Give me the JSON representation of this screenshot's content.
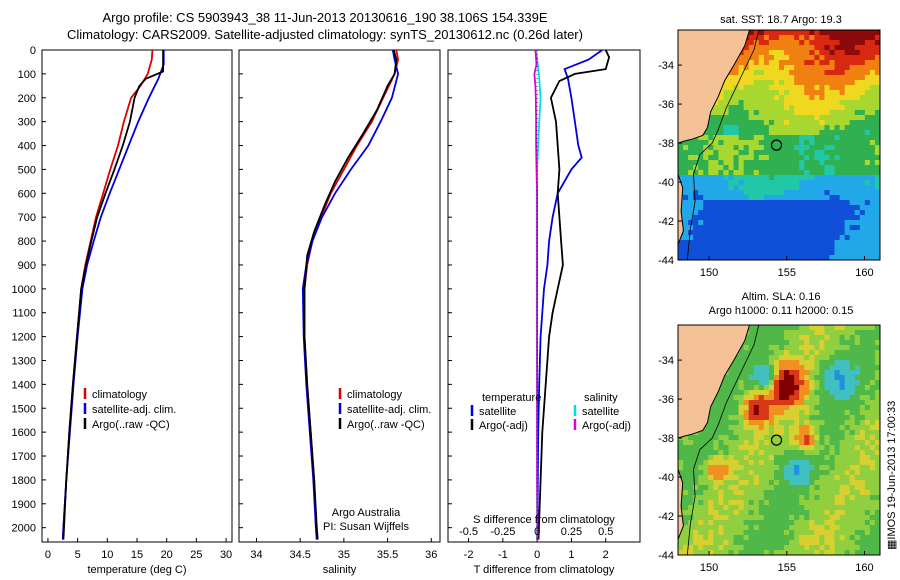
{
  "title_line1": "Argo profile: CS 5903943_38 11-Jun-2013 20130616_190 38.106S 154.339E",
  "title_line2": "Climatology: CARS2009. Satellite-adjusted climatology: synTS_20130612.nc (0.26d later)",
  "map1_title": "sat. SST: 18.7 Argo: 19.3",
  "map2_title_line1": "Altim. SLA: 0.16",
  "map2_title_line2": "Argo h1000: 0.11 h2000: 0.15",
  "side_text": "IMOS 19-Jun-2013 17:00:33",
  "attribution": [
    "Argo Australia",
    "PI: Susan Wijffels"
  ],
  "colors": {
    "climatology": "#dd0000",
    "satellite": "#0000dd",
    "argo": "#000000",
    "sat_cyan": "#00dddd",
    "argo_magenta": "#dd00dd",
    "land": "#f5c298"
  },
  "chart_data": [
    {
      "type": "line",
      "xlabel": "temperature (deg C)",
      "ylabel": "depth",
      "xlim": [
        -1,
        31
      ],
      "ylim": [
        2060,
        0
      ],
      "x_ticks": [
        0,
        5,
        10,
        15,
        20,
        25,
        30
      ],
      "y_ticks": [
        0,
        100,
        200,
        300,
        400,
        500,
        600,
        700,
        800,
        900,
        1000,
        1100,
        1200,
        1300,
        1400,
        1500,
        1600,
        1700,
        1800,
        1900,
        2000
      ],
      "legend": [
        "climatology",
        "satellite-adj. clim.",
        "Argo(..raw -QC)"
      ],
      "legend_position": "lower-center",
      "series": [
        {
          "name": "climatology",
          "color": "#dd0000",
          "points": [
            [
              17.6,
              0
            ],
            [
              17.5,
              40
            ],
            [
              16.8,
              100
            ],
            [
              15.6,
              150
            ],
            [
              14.0,
              200
            ],
            [
              12.8,
              300
            ],
            [
              11.8,
              400
            ],
            [
              10.5,
              500
            ],
            [
              9.3,
              600
            ],
            [
              8.1,
              700
            ],
            [
              7.2,
              800
            ],
            [
              6.3,
              900
            ],
            [
              5.6,
              1000
            ],
            [
              4.9,
              1200
            ],
            [
              4.2,
              1400
            ],
            [
              3.6,
              1600
            ],
            [
              3.1,
              1800
            ],
            [
              2.6,
              2000
            ],
            [
              2.5,
              2050
            ]
          ]
        },
        {
          "name": "satellite-adj. clim.",
          "color": "#0000dd",
          "points": [
            [
              19.5,
              0
            ],
            [
              19.5,
              60
            ],
            [
              18.6,
              120
            ],
            [
              17.0,
              200
            ],
            [
              15.2,
              300
            ],
            [
              13.6,
              400
            ],
            [
              12.0,
              500
            ],
            [
              10.4,
              600
            ],
            [
              8.9,
              700
            ],
            [
              7.7,
              800
            ],
            [
              6.6,
              900
            ],
            [
              5.8,
              1000
            ],
            [
              5.0,
              1200
            ],
            [
              4.3,
              1400
            ],
            [
              3.7,
              1600
            ],
            [
              3.1,
              1800
            ],
            [
              2.6,
              2000
            ],
            [
              2.5,
              2050
            ]
          ]
        },
        {
          "name": "Argo(..raw -QC)",
          "color": "#000000",
          "points": [
            [
              19.4,
              0
            ],
            [
              19.4,
              90
            ],
            [
              16.5,
              120
            ],
            [
              15.4,
              150
            ],
            [
              14.6,
              200
            ],
            [
              13.8,
              300
            ],
            [
              12.6,
              400
            ],
            [
              11.2,
              500
            ],
            [
              9.7,
              600
            ],
            [
              8.3,
              700
            ],
            [
              7.3,
              800
            ],
            [
              6.4,
              900
            ],
            [
              5.6,
              1000
            ],
            [
              4.9,
              1200
            ],
            [
              4.2,
              1400
            ],
            [
              3.6,
              1600
            ],
            [
              3.1,
              1800
            ],
            [
              2.7,
              2000
            ],
            [
              2.6,
              2050
            ]
          ]
        }
      ]
    },
    {
      "type": "line",
      "xlabel": "salinity",
      "xlim": [
        33.8,
        36.1
      ],
      "ylim": [
        2060,
        0
      ],
      "x_ticks": [
        34,
        34.5,
        35,
        35.5,
        36
      ],
      "legend": [
        "climatology",
        "satellite-adj. clim.",
        "Argo(..raw -QC)"
      ],
      "legend_position": "lower-center",
      "series": [
        {
          "name": "climatology",
          "color": "#dd0000",
          "points": [
            [
              35.6,
              0
            ],
            [
              35.62,
              40
            ],
            [
              35.58,
              100
            ],
            [
              35.45,
              200
            ],
            [
              35.32,
              300
            ],
            [
              35.15,
              400
            ],
            [
              35.0,
              500
            ],
            [
              34.85,
              600
            ],
            [
              34.74,
              700
            ],
            [
              34.64,
              800
            ],
            [
              34.58,
              900
            ],
            [
              34.55,
              1000
            ],
            [
              34.55,
              1200
            ],
            [
              34.58,
              1400
            ],
            [
              34.62,
              1600
            ],
            [
              34.66,
              1800
            ],
            [
              34.68,
              2000
            ],
            [
              34.69,
              2050
            ]
          ]
        },
        {
          "name": "satellite-adj. clim.",
          "color": "#0000dd",
          "points": [
            [
              35.56,
              0
            ],
            [
              35.58,
              40
            ],
            [
              35.62,
              100
            ],
            [
              35.55,
              200
            ],
            [
              35.42,
              300
            ],
            [
              35.28,
              400
            ],
            [
              35.08,
              500
            ],
            [
              34.9,
              600
            ],
            [
              34.75,
              700
            ],
            [
              34.64,
              800
            ],
            [
              34.57,
              900
            ],
            [
              34.53,
              1000
            ],
            [
              34.54,
              1200
            ],
            [
              34.57,
              1400
            ],
            [
              34.61,
              1600
            ],
            [
              34.65,
              1800
            ],
            [
              34.68,
              2000
            ],
            [
              34.69,
              2050
            ]
          ]
        },
        {
          "name": "Argo(..raw -QC)",
          "color": "#000000",
          "points": [
            [
              35.57,
              0
            ],
            [
              35.6,
              40
            ],
            [
              35.58,
              100
            ],
            [
              35.5,
              150
            ],
            [
              35.38,
              250
            ],
            [
              35.22,
              350
            ],
            [
              35.05,
              450
            ],
            [
              34.9,
              550
            ],
            [
              34.78,
              650
            ],
            [
              34.66,
              760
            ],
            [
              34.58,
              860
            ],
            [
              34.55,
              1000
            ],
            [
              34.55,
              1200
            ],
            [
              34.58,
              1400
            ],
            [
              34.62,
              1600
            ],
            [
              34.66,
              1800
            ],
            [
              34.69,
              2000
            ],
            [
              34.7,
              2050
            ]
          ]
        }
      ]
    },
    {
      "type": "line",
      "xlabel": "T difference from climatology",
      "xlabel_top": "S difference from climatology",
      "xlim": [
        -2.6,
        3.0
      ],
      "ylim": [
        2060,
        0
      ],
      "x_ticks": [
        -2,
        -1,
        0,
        1,
        2
      ],
      "x_ticks_top": [
        -0.5,
        -0.25,
        0,
        0.25,
        0.5
      ],
      "legend_temperature": [
        "temperature",
        "satellite",
        "Argo(-adj)"
      ],
      "legend_salinity": [
        "salinity",
        "satellite",
        "Argo(-adj)"
      ],
      "legend_position": "lower-center",
      "series": [
        {
          "name": "temperature satellite",
          "color": "#0000dd",
          "points": [
            [
              1.9,
              0
            ],
            [
              1.5,
              40
            ],
            [
              0.8,
              80
            ],
            [
              0.9,
              120
            ],
            [
              1.0,
              200
            ],
            [
              1.1,
              300
            ],
            [
              1.2,
              400
            ],
            [
              1.3,
              450
            ],
            [
              1.0,
              500
            ],
            [
              0.6,
              600
            ],
            [
              0.45,
              700
            ],
            [
              0.35,
              800
            ],
            [
              0.3,
              900
            ],
            [
              0.2,
              1000
            ],
            [
              0.1,
              1200
            ],
            [
              0.06,
              1400
            ],
            [
              0.03,
              1600
            ],
            [
              0.02,
              1800
            ],
            [
              0.01,
              2000
            ],
            [
              0.0,
              2050
            ]
          ]
        },
        {
          "name": "temperature Argo(-adj)",
          "color": "#000000",
          "points": [
            [
              2.0,
              0
            ],
            [
              2.1,
              30
            ],
            [
              2.0,
              80
            ],
            [
              1.1,
              100
            ],
            [
              0.65,
              130
            ],
            [
              0.4,
              200
            ],
            [
              0.55,
              300
            ],
            [
              0.6,
              400
            ],
            [
              0.65,
              500
            ],
            [
              0.6,
              600
            ],
            [
              0.65,
              700
            ],
            [
              0.7,
              800
            ],
            [
              0.75,
              900
            ],
            [
              0.6,
              1000
            ],
            [
              0.45,
              1100
            ],
            [
              0.35,
              1200
            ],
            [
              0.25,
              1400
            ],
            [
              0.15,
              1600
            ],
            [
              0.1,
              1800
            ],
            [
              0.05,
              2000
            ],
            [
              0.04,
              2050
            ]
          ]
        },
        {
          "name": "salinity satellite",
          "color": "#00dddd",
          "points": [
            [
              -0.03,
              0
            ],
            [
              0.05,
              100
            ],
            [
              0.1,
              200
            ],
            [
              0.06,
              300
            ],
            [
              0.03,
              400
            ],
            [
              0.0,
              500
            ],
            [
              -0.01,
              600
            ],
            [
              -0.01,
              800
            ],
            [
              -0.01,
              1000
            ],
            [
              -0.01,
              1200
            ],
            [
              0.0,
              1400
            ],
            [
              0.0,
              1600
            ],
            [
              0.0,
              1800
            ],
            [
              0.0,
              2000
            ],
            [
              0.0,
              2050
            ]
          ]
        },
        {
          "name": "salinity Argo(-adj)",
          "color": "#dd00dd",
          "points": [
            [
              -0.05,
              0
            ],
            [
              -0.02,
              60
            ],
            [
              -0.08,
              100
            ],
            [
              -0.05,
              150
            ],
            [
              -0.04,
              200
            ],
            [
              -0.03,
              300
            ],
            [
              -0.03,
              400
            ],
            [
              -0.02,
              500
            ],
            [
              0.0,
              600
            ],
            [
              0.0,
              700
            ],
            [
              0.0,
              800
            ],
            [
              0.0,
              900
            ],
            [
              0.0,
              1000
            ],
            [
              0.0,
              1200
            ],
            [
              0.0,
              1400
            ],
            [
              0.0,
              1600
            ],
            [
              0.0,
              1800
            ],
            [
              0.01,
              2000
            ],
            [
              0.01,
              2050
            ]
          ]
        }
      ]
    },
    {
      "type": "heatmap",
      "title": "sat. SST: 18.7 Argo: 19.3",
      "variable": "SST",
      "x_ticks": [
        150,
        155,
        160
      ],
      "y_ticks": [
        -34,
        -36,
        -38,
        -40,
        -42,
        -44
      ],
      "xlim": [
        148,
        161
      ],
      "ylim": [
        -44,
        -32.2
      ],
      "marker": {
        "lon": 154.339,
        "lat": -38.106
      }
    },
    {
      "type": "heatmap",
      "title": "Altim. SLA: 0.16 / Argo h1000: 0.11 h2000: 0.15",
      "variable": "SLA",
      "x_ticks": [
        150,
        155,
        160
      ],
      "y_ticks": [
        -34,
        -36,
        -38,
        -40,
        -42,
        -44
      ],
      "xlim": [
        148,
        161
      ],
      "ylim": [
        -44,
        -32.2
      ],
      "marker": {
        "lon": 154.339,
        "lat": -38.106
      }
    }
  ]
}
